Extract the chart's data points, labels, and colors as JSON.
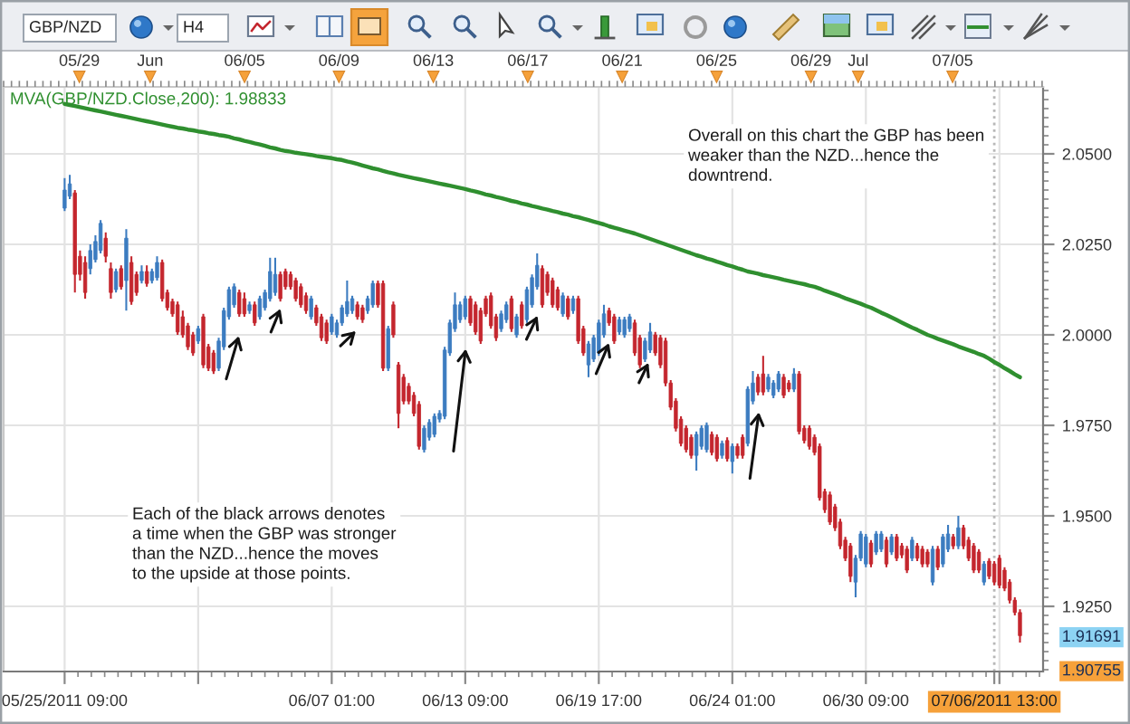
{
  "chart_data": {
    "type": "candlestick",
    "categories": [
      "05/25/2011 09:00",
      null,
      null,
      null,
      null,
      null,
      null,
      null,
      null,
      null,
      null,
      null,
      null,
      null,
      null,
      null,
      null,
      null,
      null,
      null,
      null,
      null,
      null,
      null,
      null,
      null,
      null,
      null,
      null,
      null,
      null,
      null,
      null,
      null,
      null,
      null,
      null,
      null,
      null,
      null,
      null,
      null,
      null,
      null,
      null,
      null,
      null,
      null,
      null,
      null,
      null,
      null,
      "06/07 01:00",
      null,
      null,
      null,
      null,
      null,
      null,
      null,
      null,
      null,
      null,
      null,
      null,
      null,
      null,
      null,
      null,
      null,
      null,
      null,
      null,
      null,
      null,
      null,
      null,
      null,
      "06/13 09:00",
      null,
      null,
      null,
      null,
      null,
      null,
      null,
      null,
      null,
      null,
      null,
      null,
      null,
      null,
      null,
      null,
      null,
      null,
      null,
      null,
      null,
      null,
      null,
      null,
      null,
      "06/19 17:00",
      null,
      null,
      null,
      null,
      null,
      null,
      null,
      null,
      null,
      null,
      null,
      null,
      null,
      null,
      null,
      null,
      null,
      null,
      null,
      null,
      null,
      null,
      null,
      null,
      null,
      "06/24 01:00",
      null,
      null,
      null,
      null,
      null,
      null,
      null,
      null,
      null,
      null,
      null,
      null,
      null,
      null,
      null,
      null,
      null,
      null,
      null,
      null,
      null,
      null,
      null,
      null,
      null,
      "06/30 09:00",
      null,
      null,
      null,
      null,
      null,
      null,
      null,
      null,
      null,
      null,
      null,
      null,
      null,
      null,
      null,
      null,
      null,
      null,
      null,
      null,
      null,
      null,
      null,
      null,
      "07/06/2011 13:00",
      null,
      null,
      null,
      null,
      null
    ],
    "series": [
      {
        "type": "candlestick",
        "ohlc": [
          [
            2.035,
            2.0433,
            2.0342,
            2.04
          ],
          [
            2.0383,
            2.0442,
            2.0375,
            2.0417
          ],
          [
            2.0392,
            2.04,
            2.0117,
            2.0167
          ],
          [
            2.0217,
            2.0233,
            2.015,
            2.0167
          ],
          [
            2.02,
            2.0217,
            2.01,
            2.0117
          ],
          [
            2.0183,
            2.025,
            2.0167,
            2.0233
          ],
          [
            2.0208,
            2.0275,
            2.02,
            2.0258
          ],
          [
            2.0233,
            2.0317,
            2.0225,
            2.0308
          ],
          [
            2.0267,
            2.0283,
            2.02,
            2.0217
          ],
          [
            2.0183,
            2.02,
            2.01,
            2.0117
          ],
          [
            2.0125,
            2.0183,
            2.0117,
            2.0175
          ],
          [
            2.0183,
            2.0192,
            2.0125,
            2.0133
          ],
          [
            2.015,
            2.0292,
            2.0067,
            2.0267
          ],
          [
            2.02,
            2.0217,
            2.0083,
            2.0092
          ],
          [
            2.0167,
            2.0175,
            2.0108,
            2.0117
          ],
          [
            2.015,
            2.0192,
            2.0142,
            2.0175
          ],
          [
            2.0175,
            2.0192,
            2.0133,
            2.0142
          ],
          [
            2.015,
            2.0183,
            2.0142,
            2.0175
          ],
          [
            2.0158,
            2.0217,
            2.015,
            2.02
          ],
          [
            2.02,
            2.0208,
            2.0092,
            2.01
          ],
          [
            2.0117,
            2.0125,
            2.0067,
            2.0075
          ],
          [
            2.0092,
            2.01,
            2.005,
            2.0058
          ],
          [
            2.0083,
            2.0092,
            2.0,
            2.0008
          ],
          [
            2.005,
            2.0067,
            1.9992,
            2.0
          ],
          [
            2.0025,
            2.0033,
            1.9958,
            1.9967
          ],
          [
            2.0,
            2.0008,
            1.9942,
            1.995
          ],
          [
            1.9983,
            2.0025,
            1.9975,
            2.0017
          ],
          [
            2.005,
            2.0058,
            1.9908,
            1.9917
          ],
          [
            1.9967,
            1.9975,
            1.99,
            1.9908
          ],
          [
            1.995,
            1.9958,
            1.9892,
            1.99
          ],
          [
            1.9908,
            1.9992,
            1.99,
            1.9983
          ],
          [
            1.9967,
            2.0075,
            1.9958,
            2.0067
          ],
          [
            2.005,
            2.0133,
            2.0042,
            2.0125
          ],
          [
            2.0083,
            2.0142,
            2.0075,
            2.0133
          ],
          [
            2.0117,
            2.0125,
            2.005,
            2.0058
          ],
          [
            2.01,
            2.0117,
            2.005,
            2.0058
          ],
          [
            2.0067,
            2.0092,
            2.0058,
            2.0083
          ],
          [
            2.0083,
            2.0092,
            2.0025,
            2.0033
          ],
          [
            2.005,
            2.0108,
            2.0042,
            2.01
          ],
          [
            2.0075,
            2.0125,
            2.0067,
            2.0117
          ],
          [
            2.01,
            2.0213,
            2.0092,
            2.0175
          ],
          [
            2.0117,
            2.0213,
            2.0108,
            2.0167
          ],
          [
            2.0167,
            2.0175,
            2.0092,
            2.01
          ],
          [
            2.0175,
            2.0183,
            2.0125,
            2.0133
          ],
          [
            2.0167,
            2.0175,
            2.0125,
            2.0133
          ],
          [
            2.015,
            2.0158,
            2.0092,
            2.01
          ],
          [
            2.0133,
            2.0142,
            2.0075,
            2.0083
          ],
          [
            2.0108,
            2.0117,
            2.0058,
            2.0067
          ],
          [
            2.005,
            2.0108,
            2.0042,
            2.01
          ],
          [
            2.0075,
            2.0083,
            2.0025,
            2.0033
          ],
          [
            2.005,
            2.0058,
            1.9983,
            1.9992
          ],
          [
            2.0033,
            2.0042,
            1.9975,
            1.9983
          ],
          [
            2.0008,
            2.0058,
            2.0,
            2.005
          ],
          [
            2.0,
            2.0042,
            1.9992,
            2.0033
          ],
          [
            2.0033,
            2.0083,
            2.0025,
            2.0075
          ],
          [
            2.0058,
            2.015,
            2.005,
            2.0092
          ],
          [
            2.0067,
            2.0108,
            2.0058,
            2.01
          ],
          [
            2.0083,
            2.0092,
            2.0042,
            2.005
          ],
          [
            2.0075,
            2.0083,
            2.0033,
            2.0042
          ],
          [
            2.0067,
            2.0108,
            2.0058,
            2.01
          ],
          [
            2.0083,
            2.015,
            2.0075,
            2.0142
          ],
          [
            2.0142,
            2.015,
            2.0075,
            2.0083
          ],
          [
            2.0142,
            2.015,
            1.99,
            1.9908
          ],
          [
            1.9908,
            2.0025,
            1.99,
            2.0017
          ],
          [
            2.0083,
            2.0092,
            1.9992,
            2.0
          ],
          [
            1.9917,
            1.9925,
            1.9742,
            1.9783
          ],
          [
            1.9883,
            1.9892,
            1.9808,
            1.9817
          ],
          [
            1.9858,
            1.9867,
            1.9808,
            1.9817
          ],
          [
            1.9833,
            1.9842,
            1.9775,
            1.9783
          ],
          [
            1.9808,
            1.9817,
            1.9683,
            1.9692
          ],
          [
            1.9683,
            1.975,
            1.9675,
            1.9742
          ],
          [
            1.9717,
            1.9767,
            1.9708,
            1.9758
          ],
          [
            1.9725,
            1.9783,
            1.9717,
            1.9775
          ],
          [
            1.9767,
            1.9792,
            1.9758,
            1.9783
          ],
          [
            1.9775,
            1.9967,
            1.9767,
            1.9958
          ],
          [
            1.995,
            2.0042,
            1.9942,
            2.0033
          ],
          [
            2.0017,
            2.0117,
            2.0008,
            2.0083
          ],
          [
            2.0042,
            2.0092,
            2.0033,
            2.0083
          ],
          [
            2.005,
            2.0108,
            2.0042,
            2.01
          ],
          [
            2.01,
            2.0108,
            2.0025,
            2.0033
          ],
          [
            2.0083,
            2.0092,
            2.0,
            2.0008
          ],
          [
            2.0067,
            2.0075,
            1.9975,
            1.9983
          ],
          [
            2.01,
            2.0108,
            2.005,
            2.0058
          ],
          [
            2.0108,
            2.0117,
            2.0017,
            2.0025
          ],
          [
            2.005,
            2.0058,
            1.9983,
            1.9992
          ],
          [
            2.0017,
            2.0067,
            2.0008,
            2.0058
          ],
          [
            2.0042,
            2.0092,
            2.0033,
            2.0083
          ],
          [
            2.01,
            2.0108,
            2.0008,
            2.0017
          ],
          [
            2.0,
            2.0058,
            1.9992,
            2.005
          ],
          [
            2.0083,
            2.0092,
            2.0017,
            2.0025
          ],
          [
            2.0042,
            2.0133,
            2.0033,
            2.0125
          ],
          [
            2.0083,
            2.0167,
            2.0075,
            2.0158
          ],
          [
            2.0133,
            2.0225,
            2.0125,
            2.0192
          ],
          [
            2.0183,
            2.0192,
            2.0075,
            2.0083
          ],
          [
            2.0167,
            2.0175,
            2.0108,
            2.0117
          ],
          [
            2.015,
            2.0158,
            2.0075,
            2.0083
          ],
          [
            2.0125,
            2.0133,
            2.0067,
            2.0075
          ],
          [
            2.0058,
            2.0117,
            2.005,
            2.0108
          ],
          [
            2.01,
            2.0108,
            2.0042,
            2.005
          ],
          [
            2.0067,
            2.0108,
            2.0058,
            2.01
          ],
          [
            2.01,
            2.0108,
            1.9975,
            1.9983
          ],
          [
            2.0017,
            2.0025,
            1.9942,
            1.995
          ],
          [
            1.9917,
            1.9983,
            1.9883,
            1.9975
          ],
          [
            1.9933,
            2.0,
            1.9925,
            1.9992
          ],
          [
            1.995,
            2.0042,
            1.9942,
            2.0033
          ],
          [
            2.0,
            2.0083,
            1.9992,
            2.0058
          ],
          [
            2.0067,
            2.0075,
            2.0025,
            2.0033
          ],
          [
            2.005,
            2.0058,
            1.9975,
            1.9983
          ],
          [
            2.0008,
            2.005,
            2.0,
            2.0042
          ],
          [
            2.0,
            2.005,
            1.9992,
            2.0042
          ],
          [
            2.0017,
            2.0058,
            2.0008,
            2.005
          ],
          [
            2.0033,
            2.0042,
            1.9942,
            1.995
          ],
          [
            1.9992,
            2.0,
            1.9908,
            1.9917
          ],
          [
            1.9933,
            1.9992,
            1.9925,
            1.9983
          ],
          [
            1.9958,
            2.0033,
            1.995,
            2.0008
          ],
          [
            2.0,
            2.0008,
            1.9942,
            1.995
          ],
          [
            1.9992,
            2.0,
            1.9908,
            1.9917
          ],
          [
            1.9983,
            1.9992,
            1.9858,
            1.9867
          ],
          [
            1.9867,
            1.9875,
            1.9792,
            1.98
          ],
          [
            1.9817,
            1.9825,
            1.9733,
            1.9742
          ],
          [
            1.9767,
            1.9775,
            1.9692,
            1.97
          ],
          [
            1.9742,
            1.975,
            1.9675,
            1.9683
          ],
          [
            1.9717,
            1.9725,
            1.9658,
            1.9667
          ],
          [
            1.9667,
            1.9733,
            1.9625,
            1.9725
          ],
          [
            1.9692,
            1.975,
            1.9683,
            1.9742
          ],
          [
            1.9683,
            1.9758,
            1.9675,
            1.975
          ],
          [
            1.9725,
            1.9733,
            1.9667,
            1.9675
          ],
          [
            1.9717,
            1.9725,
            1.965,
            1.9658
          ],
          [
            1.9667,
            1.9708,
            1.9658,
            1.97
          ],
          [
            1.9708,
            1.9717,
            1.965,
            1.9658
          ],
          [
            1.965,
            1.97,
            1.9617,
            1.9692
          ],
          [
            1.9692,
            1.97,
            1.9658,
            1.9667
          ],
          [
            1.9717,
            1.9725,
            1.9658,
            1.9667
          ],
          [
            1.97,
            1.9858,
            1.9692,
            1.985
          ],
          [
            1.9817,
            1.99,
            1.9808,
            1.9867
          ],
          [
            1.9883,
            1.9892,
            1.9833,
            1.9842
          ],
          [
            1.9892,
            1.9942,
            1.9833,
            1.9842
          ],
          [
            1.985,
            1.9892,
            1.9842,
            1.9883
          ],
          [
            1.9833,
            1.9875,
            1.9825,
            1.9867
          ],
          [
            1.985,
            1.99,
            1.9842,
            1.9892
          ],
          [
            1.9883,
            1.9892,
            1.9825,
            1.9833
          ],
          [
            1.9867,
            1.9875,
            1.9842,
            1.985
          ],
          [
            1.985,
            1.9908,
            1.9842,
            1.9892
          ],
          [
            1.9892,
            1.99,
            1.9725,
            1.9733
          ],
          [
            1.9742,
            1.975,
            1.97,
            1.9708
          ],
          [
            1.9742,
            1.975,
            1.9683,
            1.9692
          ],
          [
            1.9717,
            1.9725,
            1.9667,
            1.9675
          ],
          [
            1.9692,
            1.97,
            1.9542,
            1.955
          ],
          [
            1.9567,
            1.9575,
            1.9508,
            1.9517
          ],
          [
            1.9558,
            1.9567,
            1.9475,
            1.9483
          ],
          [
            1.9525,
            1.9533,
            1.9458,
            1.9467
          ],
          [
            1.9483,
            1.9492,
            1.9408,
            1.9417
          ],
          [
            1.9433,
            1.9442,
            1.9375,
            1.9383
          ],
          [
            1.9417,
            1.9425,
            1.9317,
            1.9333
          ],
          [
            1.9317,
            1.9392,
            1.9275,
            1.9383
          ],
          [
            1.9383,
            1.9458,
            1.9375,
            1.945
          ],
          [
            1.9367,
            1.945,
            1.9358,
            1.9442
          ],
          [
            1.9425,
            1.9433,
            1.9358,
            1.9367
          ],
          [
            1.94,
            1.9458,
            1.9392,
            1.945
          ],
          [
            1.9408,
            1.9458,
            1.94,
            1.945
          ],
          [
            1.9433,
            1.9442,
            1.9358,
            1.9367
          ],
          [
            1.94,
            1.945,
            1.9392,
            1.9442
          ],
          [
            1.9442,
            1.945,
            1.9375,
            1.9383
          ],
          [
            1.9417,
            1.9425,
            1.9383,
            1.9392
          ],
          [
            1.9408,
            1.9417,
            1.9342,
            1.935
          ],
          [
            1.9383,
            1.9442,
            1.9375,
            1.9433
          ],
          [
            1.9417,
            1.9425,
            1.9375,
            1.9383
          ],
          [
            1.9408,
            1.9417,
            1.9358,
            1.9367
          ],
          [
            1.94,
            1.9408,
            1.9358,
            1.9367
          ],
          [
            1.9317,
            1.9417,
            1.9308,
            1.9408
          ],
          [
            1.9408,
            1.9417,
            1.935,
            1.9358
          ],
          [
            1.9367,
            1.945,
            1.9358,
            1.9442
          ],
          [
            1.9408,
            1.9475,
            1.94,
            1.945
          ],
          [
            1.9442,
            1.945,
            1.9408,
            1.9417
          ],
          [
            1.9417,
            1.95,
            1.9408,
            1.9467
          ],
          [
            1.9467,
            1.9475,
            1.9408,
            1.9417
          ],
          [
            1.9433,
            1.9442,
            1.9375,
            1.9383
          ],
          [
            1.9417,
            1.9425,
            1.9342,
            1.935
          ],
          [
            1.94,
            1.9408,
            1.9342,
            1.935
          ],
          [
            1.9317,
            1.9375,
            1.9308,
            1.9367
          ],
          [
            1.9375,
            1.9383,
            1.9325,
            1.9333
          ],
          [
            1.9367,
            1.9375,
            1.9308,
            1.9317
          ],
          [
            1.9383,
            1.9392,
            1.93,
            1.9308
          ],
          [
            1.935,
            1.9358,
            1.9292,
            1.93
          ],
          [
            1.9317,
            1.9325,
            1.9258,
            1.9267
          ],
          [
            1.9267,
            1.9275,
            1.9225,
            1.9233
          ],
          [
            1.9233,
            1.9242,
            1.915,
            1.91691
          ]
        ],
        "colors": [
          "#3c7cc0",
          "#3c7cc0",
          "#c4262e",
          "#c4262e",
          "#c4262e",
          "#3c7cc0",
          "#3c7cc0",
          "#3c7cc0",
          "#c4262e",
          "#c4262e",
          "#3c7cc0",
          "#c4262e",
          "#3c7cc0",
          "#c4262e",
          "#c4262e",
          "#3c7cc0",
          "#c4262e",
          "#3c7cc0",
          "#3c7cc0",
          "#c4262e",
          "#c4262e",
          "#c4262e",
          "#c4262e",
          "#c4262e",
          "#c4262e",
          "#c4262e",
          "#3c7cc0",
          "#c4262e",
          "#c4262e",
          "#c4262e",
          "#3c7cc0",
          "#3c7cc0",
          "#3c7cc0",
          "#3c7cc0",
          "#c4262e",
          "#c4262e",
          "#3c7cc0",
          "#c4262e",
          "#3c7cc0",
          "#3c7cc0",
          "#3c7cc0",
          "#3c7cc0",
          "#c4262e",
          "#c4262e",
          "#c4262e",
          "#c4262e",
          "#c4262e",
          "#c4262e",
          "#3c7cc0",
          "#c4262e",
          "#c4262e",
          "#c4262e",
          "#3c7cc0",
          "#3c7cc0",
          "#3c7cc0",
          "#3c7cc0",
          "#3c7cc0",
          "#c4262e",
          "#c4262e",
          "#3c7cc0",
          "#3c7cc0",
          "#c4262e",
          "#c4262e",
          "#3c7cc0",
          "#c4262e",
          "#c4262e",
          "#c4262e",
          "#c4262e",
          "#c4262e",
          "#c4262e",
          "#3c7cc0",
          "#3c7cc0",
          "#3c7cc0",
          "#3c7cc0",
          "#3c7cc0",
          "#3c7cc0",
          "#3c7cc0",
          "#3c7cc0",
          "#3c7cc0",
          "#c4262e",
          "#c4262e",
          "#c4262e",
          "#c4262e",
          "#c4262e",
          "#c4262e",
          "#3c7cc0",
          "#3c7cc0",
          "#c4262e",
          "#3c7cc0",
          "#c4262e",
          "#3c7cc0",
          "#3c7cc0",
          "#3c7cc0",
          "#c4262e",
          "#c4262e",
          "#c4262e",
          "#c4262e",
          "#3c7cc0",
          "#c4262e",
          "#3c7cc0",
          "#c4262e",
          "#c4262e",
          "#3c7cc0",
          "#3c7cc0",
          "#3c7cc0",
          "#3c7cc0",
          "#c4262e",
          "#c4262e",
          "#3c7cc0",
          "#3c7cc0",
          "#3c7cc0",
          "#c4262e",
          "#c4262e",
          "#3c7cc0",
          "#3c7cc0",
          "#c4262e",
          "#c4262e",
          "#c4262e",
          "#c4262e",
          "#c4262e",
          "#c4262e",
          "#c4262e",
          "#c4262e",
          "#3c7cc0",
          "#3c7cc0",
          "#3c7cc0",
          "#c4262e",
          "#c4262e",
          "#3c7cc0",
          "#c4262e",
          "#3c7cc0",
          "#c4262e",
          "#c4262e",
          "#3c7cc0",
          "#3c7cc0",
          "#c4262e",
          "#c4262e",
          "#3c7cc0",
          "#3c7cc0",
          "#3c7cc0",
          "#c4262e",
          "#c4262e",
          "#3c7cc0",
          "#c4262e",
          "#c4262e",
          "#c4262e",
          "#c4262e",
          "#c4262e",
          "#c4262e",
          "#c4262e",
          "#c4262e",
          "#c4262e",
          "#c4262e",
          "#c4262e",
          "#3c7cc0",
          "#3c7cc0",
          "#3c7cc0",
          "#c4262e",
          "#3c7cc0",
          "#3c7cc0",
          "#c4262e",
          "#3c7cc0",
          "#c4262e",
          "#c4262e",
          "#c4262e",
          "#3c7cc0",
          "#c4262e",
          "#c4262e",
          "#c4262e",
          "#3c7cc0",
          "#c4262e",
          "#3c7cc0",
          "#3c7cc0",
          "#c4262e",
          "#3c7cc0",
          "#c4262e",
          "#c4262e",
          "#c4262e",
          "#c4262e",
          "#3c7cc0",
          "#c4262e",
          "#c4262e",
          "#c4262e",
          "#c4262e",
          "#c4262e",
          "#c4262e",
          "#c4262e"
        ]
      },
      {
        "type": "line",
        "name": "MVA(GBP/NZD.Close,200): 1.98833",
        "color": "#2f8f2f",
        "values": [
          2.0638,
          2.0635,
          2.0632,
          2.0629,
          2.0626,
          2.0623,
          2.062,
          2.0617,
          2.0614,
          2.0611,
          2.0608,
          2.0605,
          2.0602,
          2.0599,
          2.0596,
          2.0593,
          2.059,
          2.0587,
          2.0584,
          2.0581,
          2.0578,
          2.0575,
          2.0572,
          2.057,
          2.0567,
          2.0565,
          2.0562,
          2.056,
          2.0557,
          2.0555,
          2.0552,
          2.055,
          2.0547,
          2.0543,
          2.054,
          2.0536,
          2.0533,
          2.0529,
          2.0526,
          2.0522,
          2.0518,
          2.0515,
          2.0511,
          2.0508,
          2.0506,
          2.0503,
          2.0501,
          2.0499,
          2.0497,
          2.0494,
          2.0492,
          2.049,
          2.0488,
          2.0485,
          2.0483,
          2.0479,
          2.0476,
          2.0472,
          2.0468,
          2.0464,
          2.046,
          2.0457,
          2.0453,
          2.0449,
          2.0446,
          2.0442,
          2.0439,
          2.0436,
          2.0433,
          2.043,
          2.0427,
          2.0424,
          2.0421,
          2.0418,
          2.0415,
          2.0412,
          2.0409,
          2.0406,
          2.0403,
          2.0399,
          2.0396,
          2.0392,
          2.0388,
          2.0385,
          2.0381,
          2.0378,
          2.0374,
          2.037,
          2.0367,
          2.0363,
          2.036,
          2.0356,
          2.0353,
          2.0349,
          2.0346,
          2.0342,
          2.0339,
          2.0335,
          2.0332,
          2.0328,
          2.0325,
          2.0321,
          2.0317,
          2.0313,
          2.0309,
          2.0305,
          2.03,
          2.0296,
          2.0292,
          2.0288,
          2.0284,
          2.028,
          2.0275,
          2.027,
          2.0265,
          2.026,
          2.0255,
          2.025,
          2.0245,
          2.024,
          2.0235,
          2.023,
          2.0225,
          2.022,
          2.0216,
          2.0211,
          2.0207,
          2.0202,
          2.0198,
          2.0193,
          2.0189,
          2.0184,
          2.018,
          2.0175,
          2.0172,
          2.0169,
          2.0165,
          2.0162,
          2.0159,
          2.0156,
          2.0152,
          2.0149,
          2.0146,
          2.0143,
          2.014,
          2.0136,
          2.0133,
          2.0128,
          2.0122,
          2.0117,
          2.0112,
          2.0107,
          2.0101,
          2.0096,
          2.0091,
          2.0086,
          2.008,
          2.0075,
          2.0068,
          2.0061,
          2.0055,
          2.0048,
          2.0041,
          2.0034,
          2.0027,
          2.002,
          2.0014,
          2.0007,
          2.0,
          1.9995,
          1.9989,
          1.9984,
          1.9979,
          1.9974,
          1.9968,
          1.9963,
          1.9958,
          1.9953,
          1.9947,
          1.9942,
          1.9934,
          1.9925,
          1.9917,
          1.9908,
          1.99,
          1.9891,
          1.9883
        ]
      }
    ],
    "x2lim": [
      "2011-05-25T19:00",
      "2011-07-08T20:00"
    ],
    "x2ticks": [
      {
        "value": "2011-05-29",
        "label": "05/29"
      },
      {
        "value": "2011-06-01",
        "label": "Jun"
      },
      {
        "value": "2011-06-05",
        "label": "06/05"
      },
      {
        "value": "2011-06-09",
        "label": "06/09"
      },
      {
        "value": "2011-06-13",
        "label": "06/13"
      },
      {
        "value": "2011-06-17",
        "label": "06/17"
      },
      {
        "value": "2011-06-21",
        "label": "06/21"
      },
      {
        "value": "2011-06-25",
        "label": "06/25"
      },
      {
        "value": "2011-06-29",
        "label": "06/29"
      },
      {
        "value": "2011-07-01",
        "label": "Jul"
      },
      {
        "value": "2011-07-05",
        "label": "07/05"
      }
    ],
    "ylim": [
      1.907,
      2.0685
    ],
    "yticks": [
      1.90755,
      1.91691,
      {
        "value": 1.925,
        "label": "1.9250"
      },
      {
        "value": 1.95,
        "label": "1.9500"
      },
      {
        "value": 1.975,
        "label": "1.9750"
      },
      {
        "value": 2.0,
        "label": "2.0000"
      },
      {
        "value": 2.025,
        "label": "2.0250"
      },
      {
        "value": 2.05,
        "label": "2.0500"
      }
    ],
    "grid": true,
    "ref_lines": [
      {
        "axis": "x",
        "value": "07/06/2011 13:00",
        "color": "#b8b8b8",
        "line_style": "dotted"
      }
    ],
    "annotations": [
      "GBP/NZD",
      "H4",
      "Overall on this chart the GBP has been\nweaker than the NZD...hence the\ndowntrend.",
      "Each of the black arrows denotes\na time when the GBP was stronger\nthan the NZD...hence the moves\nto the upside at those points."
    ]
  }
}
